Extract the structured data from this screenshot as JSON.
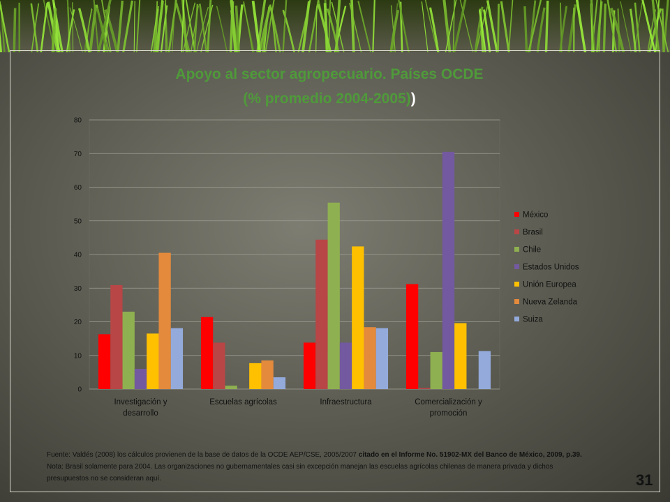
{
  "chart_data": {
    "type": "bar",
    "title": [
      "Apoyo al sector agropecuario. Países OCDE",
      "(% promedio 2004-2005)"
    ],
    "title_tail": ")",
    "categories": [
      [
        "Investigación y",
        "desarrollo"
      ],
      [
        "Escuelas agrícolas"
      ],
      [
        "Infraestructura"
      ],
      [
        "Comercialización y",
        "promoción"
      ]
    ],
    "ylim": [
      0,
      80
    ],
    "yticks": [
      0,
      10,
      20,
      30,
      40,
      50,
      60,
      70,
      80
    ],
    "grid": true,
    "legend_position": "right",
    "series": [
      {
        "name": "México",
        "color": "#ff0000",
        "values": [
          16.3,
          21.4,
          13.8,
          31.2
        ]
      },
      {
        "name": "Brasil",
        "color": "#b84646",
        "values": [
          30.9,
          13.8,
          44.4,
          0.3
        ]
      },
      {
        "name": "Chile",
        "color": "#8fb050",
        "values": [
          23.0,
          1.0,
          55.4,
          11.0
        ]
      },
      {
        "name": "Estados Unidos",
        "color": "#7359a0",
        "values": [
          6.0,
          0.0,
          13.8,
          70.5
        ]
      },
      {
        "name": "Unión Europea",
        "color": "#ffc000",
        "values": [
          16.5,
          7.7,
          42.4,
          19.6
        ]
      },
      {
        "name": "Nueva Zelanda",
        "color": "#e48a3c",
        "values": [
          40.5,
          8.5,
          18.4,
          0.0
        ]
      },
      {
        "name": "Suiza",
        "color": "#93aadb",
        "values": [
          18.1,
          3.5,
          18.1,
          11.3
        ]
      }
    ]
  },
  "footnote": {
    "source_plain": "Fuente: Valdés (2008) los cálculos provienen de la base de datos de la OCDE AEP/CSE, 2005/2007",
    "source_emph": " citado en  el Informe No. 51902-MX   del Banco de México, 2009, p.39.",
    "note": "Nota: Brasil solamente para 2004. Las organizaciones no gubernamentales casi sin excepción manejan las escuelas agrícolas chilenas de manera privada y dichos presupuestos no se consideran aquí."
  },
  "page_number": "31"
}
